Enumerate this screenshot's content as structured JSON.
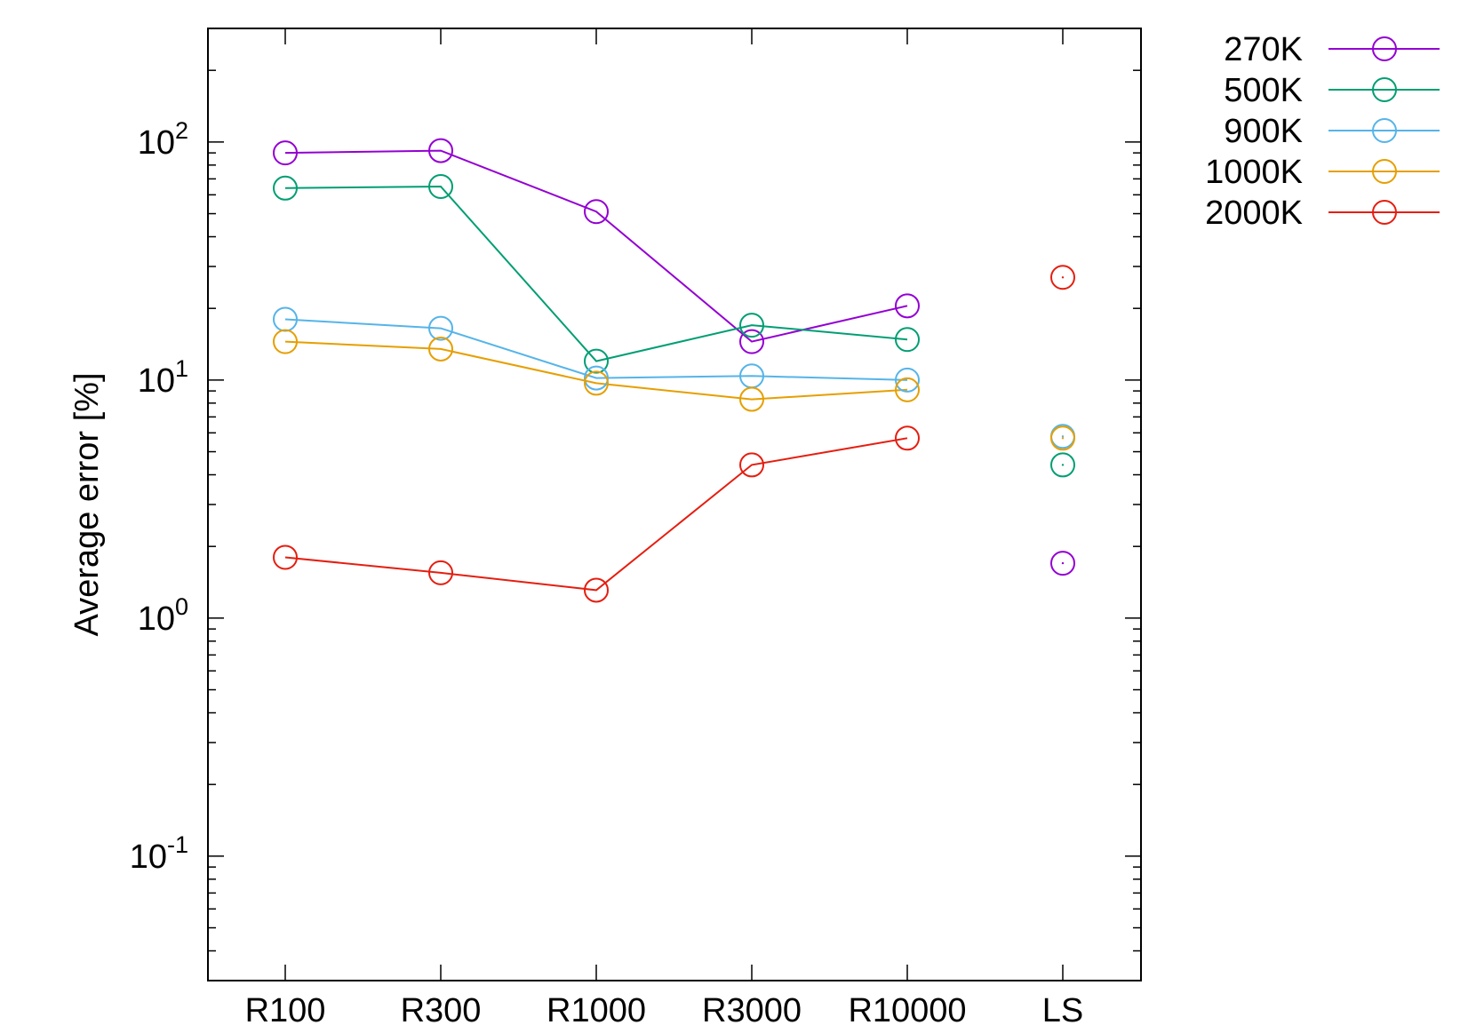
{
  "chart_data": {
    "type": "line",
    "title": "",
    "xlabel": "",
    "ylabel": "Average error [%]",
    "y_scale": "log",
    "ylim": [
      0.03,
      300
    ],
    "y_ticks": [
      {
        "value": 0.1,
        "base": "10",
        "exp": "-1"
      },
      {
        "value": 1,
        "base": "10",
        "exp": "0"
      },
      {
        "value": 10,
        "base": "10",
        "exp": "1"
      },
      {
        "value": 100,
        "base": "10",
        "exp": "2"
      }
    ],
    "categories": [
      "R100",
      "R300",
      "R1000",
      "R3000",
      "R10000",
      "LS"
    ],
    "grid": false,
    "legend_position": "outside-top-right",
    "marker": "open-circle",
    "series": [
      {
        "name": "270K",
        "color": "#9400d3",
        "values": [
          90,
          92,
          51,
          14.5,
          20.5,
          1.7
        ]
      },
      {
        "name": "500K",
        "color": "#009e73",
        "values": [
          64,
          65,
          12,
          17,
          14.8,
          4.4
        ]
      },
      {
        "name": "900K",
        "color": "#56b4e9",
        "values": [
          18,
          16.5,
          10.2,
          10.4,
          10,
          5.8
        ]
      },
      {
        "name": "1000K",
        "color": "#e69f00",
        "values": [
          14.5,
          13.5,
          9.7,
          8.3,
          9.1,
          5.7
        ]
      },
      {
        "name": "2000K",
        "color": "#e51e10",
        "values": [
          1.8,
          1.55,
          1.31,
          4.4,
          5.7,
          27
        ]
      }
    ],
    "connected_categories": 5
  }
}
